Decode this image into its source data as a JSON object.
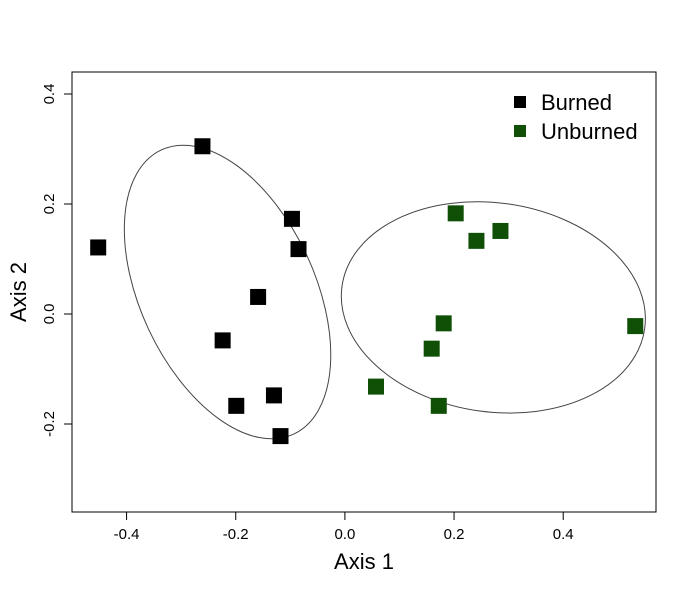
{
  "chart_data": {
    "type": "scatter",
    "xlabel": "Axis 1",
    "ylabel": "Axis 2",
    "xlim": [
      -0.5,
      0.57
    ],
    "ylim": [
      -0.36,
      0.44
    ],
    "x_ticks": [
      -0.4,
      -0.2,
      0.0,
      0.2,
      0.4
    ],
    "x_tick_labels": [
      "-0.4",
      "-0.2",
      "0.0",
      "0.2",
      "0.4"
    ],
    "y_ticks": [
      -0.2,
      0.0,
      0.2,
      0.4
    ],
    "y_tick_labels": [
      "-0.2",
      "0.0",
      "0.2",
      "0.4"
    ],
    "grid": false,
    "legend_position": "top-right",
    "series": [
      {
        "name": "Burned",
        "color": "#000000",
        "marker": "square",
        "points": [
          {
            "x": -0.452,
            "y": 0.121
          },
          {
            "x": -0.261,
            "y": 0.305
          },
          {
            "x": -0.097,
            "y": 0.173
          },
          {
            "x": -0.085,
            "y": 0.118
          },
          {
            "x": -0.159,
            "y": 0.031
          },
          {
            "x": -0.224,
            "y": -0.048
          },
          {
            "x": -0.199,
            "y": -0.167
          },
          {
            "x": -0.13,
            "y": -0.148
          },
          {
            "x": -0.118,
            "y": -0.222
          }
        ],
        "ellipse": {
          "cx": -0.215,
          "cy": 0.04,
          "rx": 0.16,
          "ry": 0.285,
          "rotation_deg": -25
        }
      },
      {
        "name": "Unburned",
        "color": "#0f5006",
        "marker": "square",
        "points": [
          {
            "x": 0.203,
            "y": 0.183
          },
          {
            "x": 0.241,
            "y": 0.133
          },
          {
            "x": 0.285,
            "y": 0.151
          },
          {
            "x": 0.181,
            "y": -0.017
          },
          {
            "x": 0.159,
            "y": -0.063
          },
          {
            "x": 0.057,
            "y": -0.132
          },
          {
            "x": 0.172,
            "y": -0.167
          },
          {
            "x": 0.532,
            "y": -0.022
          }
        ],
        "ellipse": {
          "cx": 0.272,
          "cy": 0.012,
          "rx": 0.28,
          "ry": 0.19,
          "rotation_deg": 8
        }
      }
    ]
  }
}
